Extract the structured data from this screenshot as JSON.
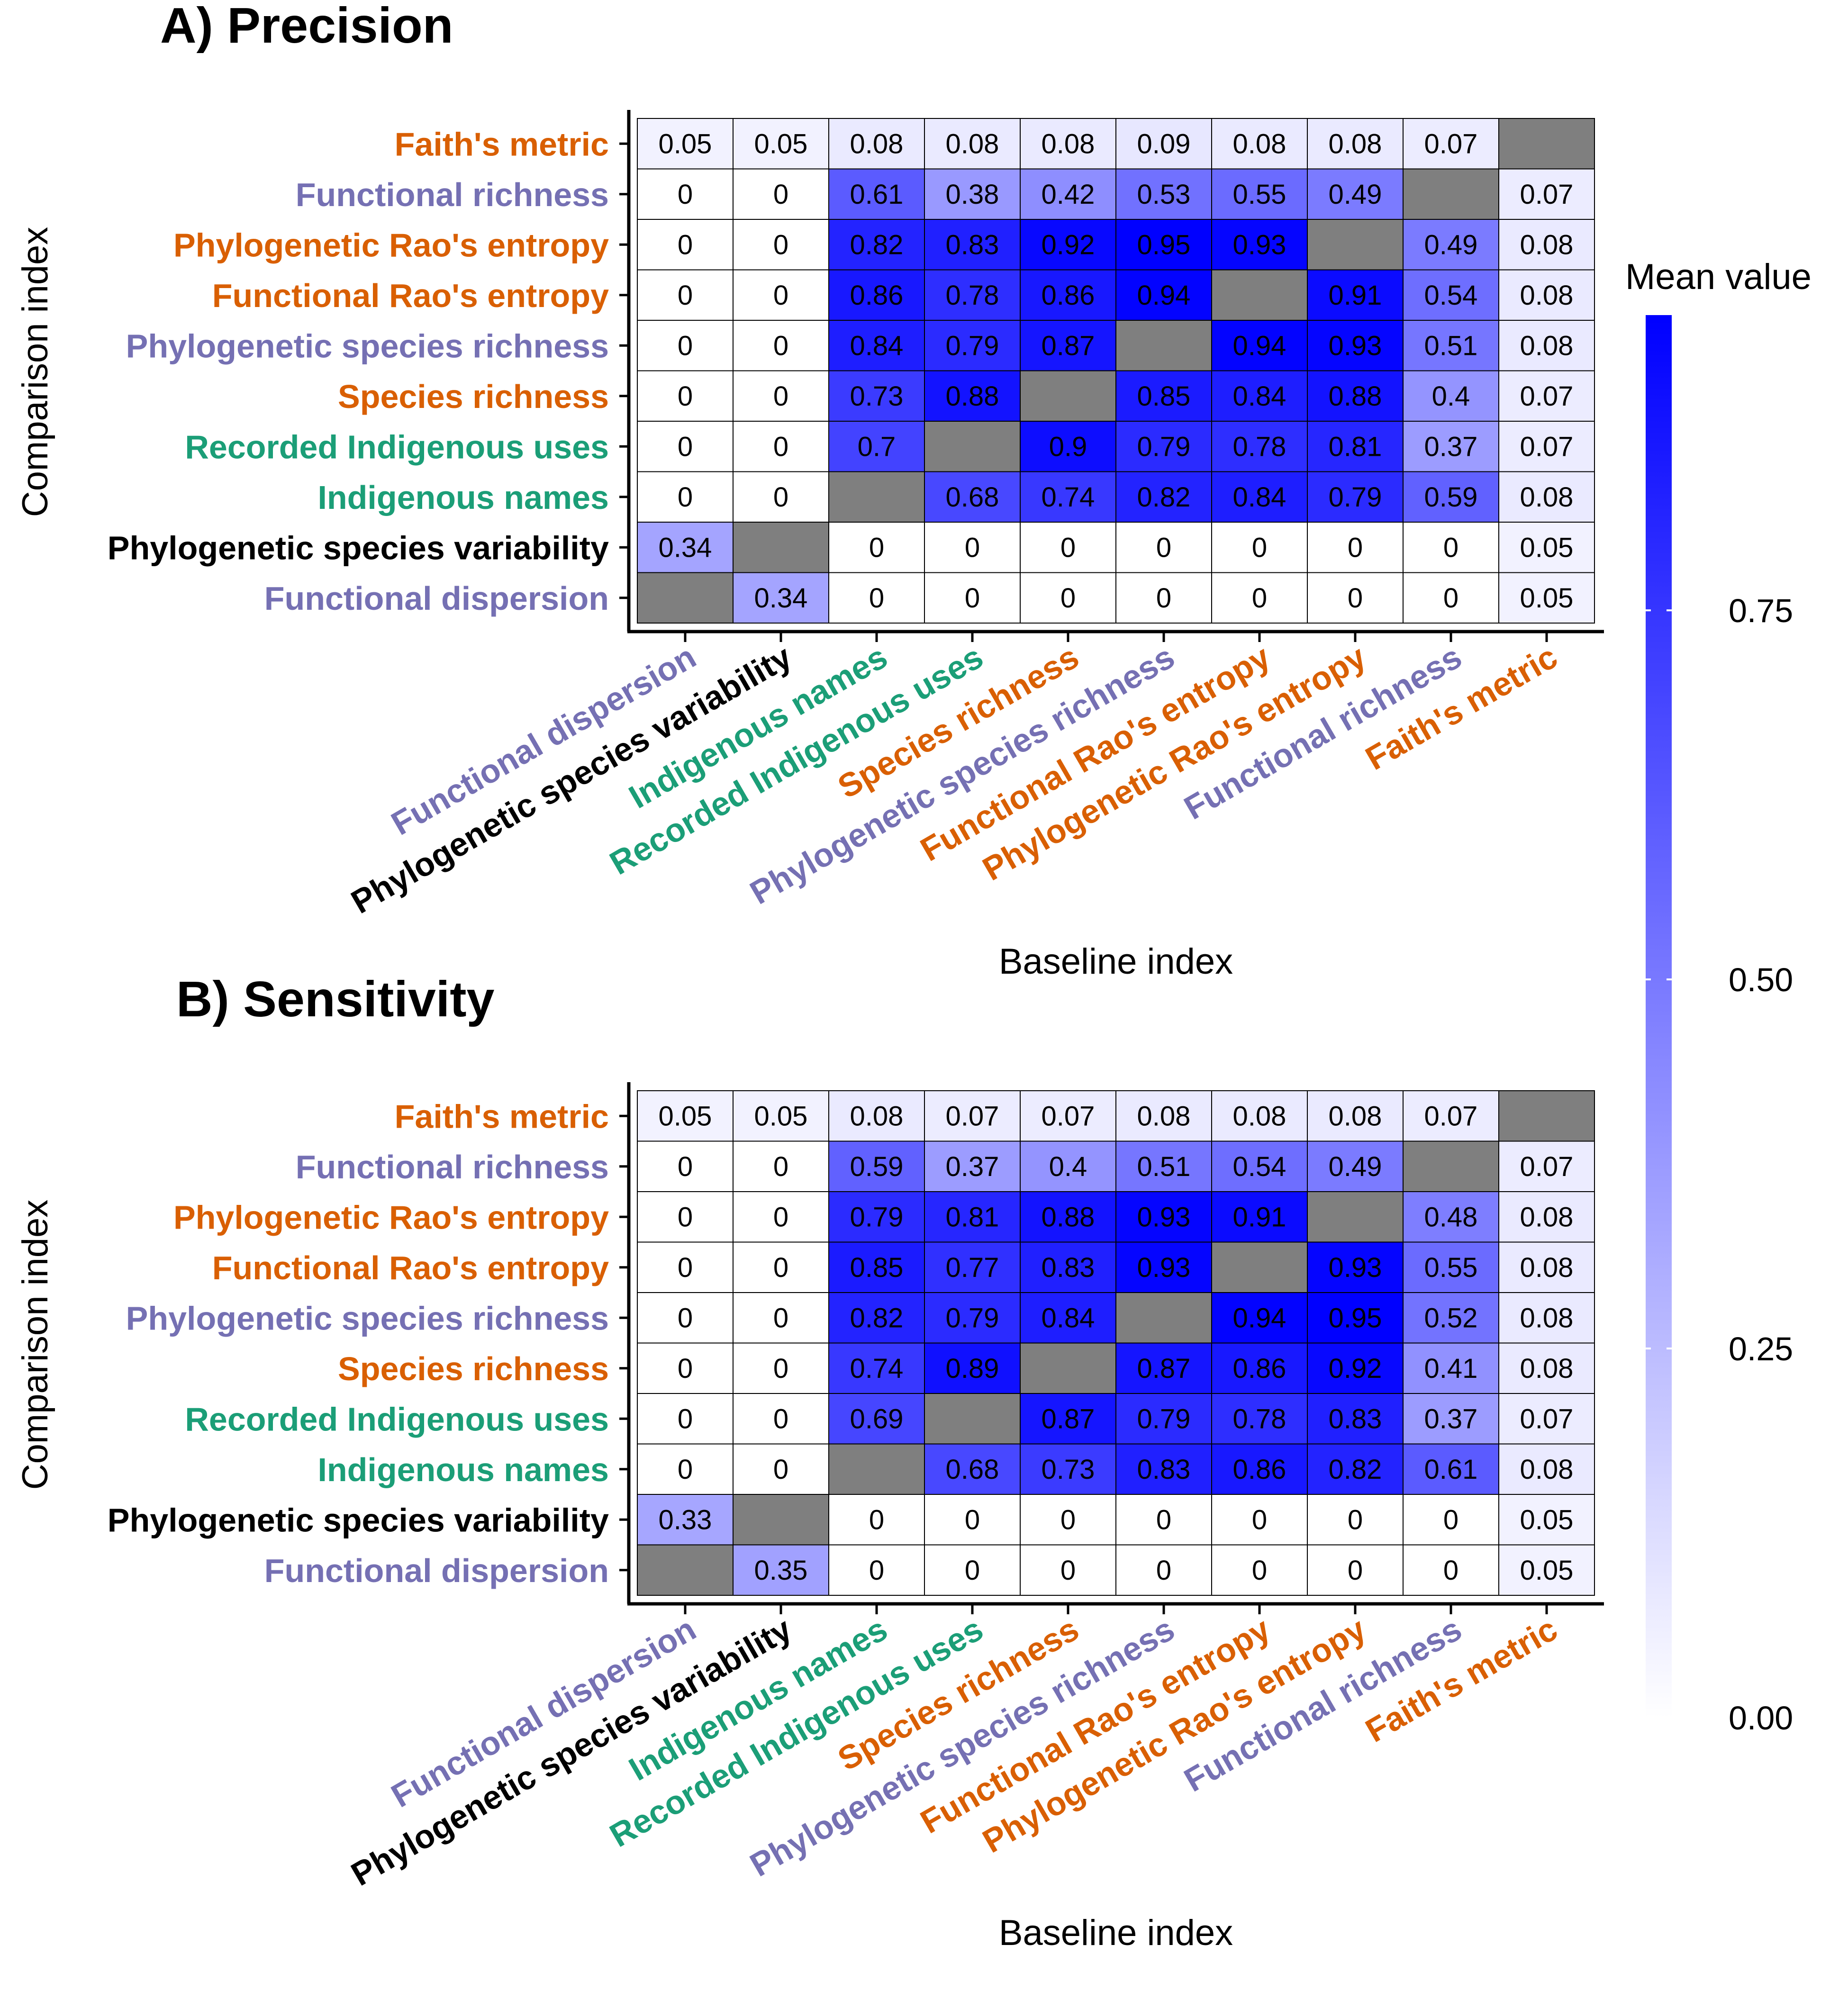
{
  "colors": {
    "group_orange": "#D95F02",
    "group_purple": "#7570B3",
    "group_green": "#1B9E77",
    "group_black": "#000000",
    "missing_cell": "#7F7F7F",
    "scale_low": "#FFFFFF",
    "scale_high": "#0000FF"
  },
  "label_groups": {
    "Faith's metric": "orange",
    "Functional richness": "purple",
    "Phylogenetic Rao's entropy": "orange",
    "Functional Rao's entropy": "orange",
    "Phylogenetic species richness": "purple",
    "Species richness": "orange",
    "Recorded Indigenous uses": "green",
    "Indigenous names": "green",
    "Phylogenetic species variability": "black",
    "Functional dispersion": "purple"
  },
  "legend": {
    "title": "Mean value",
    "ticks": [
      0.0,
      0.25,
      0.5,
      0.75
    ],
    "tick_labels": [
      "0.00",
      "0.25",
      "0.50",
      "0.75"
    ],
    "range": [
      0,
      0.95
    ]
  },
  "chart_data": [
    {
      "type": "heatmap",
      "title": "A) Precision",
      "xlabel": "Baseline index",
      "ylabel": "Comparison index",
      "x_categories": [
        "Functional dispersion",
        "Phylogenetic species variability",
        "Indigenous names",
        "Recorded Indigenous uses",
        "Species richness",
        "Phylogenetic species richness",
        "Functional Rao's entropy",
        "Phylogenetic Rao's entropy",
        "Functional richness",
        "Faith's metric"
      ],
      "y_categories": [
        "Faith's metric",
        "Functional richness",
        "Phylogenetic Rao's entropy",
        "Functional Rao's entropy",
        "Phylogenetic species richness",
        "Species richness",
        "Recorded Indigenous uses",
        "Indigenous names",
        "Phylogenetic species variability",
        "Functional dispersion"
      ],
      "values": [
        [
          0.05,
          0.05,
          0.08,
          0.08,
          0.08,
          0.09,
          0.08,
          0.08,
          0.07,
          null
        ],
        [
          0,
          0,
          0.61,
          0.38,
          0.42,
          0.53,
          0.55,
          0.49,
          null,
          0.07
        ],
        [
          0,
          0,
          0.82,
          0.83,
          0.92,
          0.95,
          0.93,
          null,
          0.49,
          0.08
        ],
        [
          0,
          0,
          0.86,
          0.78,
          0.86,
          0.94,
          null,
          0.91,
          0.54,
          0.08
        ],
        [
          0,
          0,
          0.84,
          0.79,
          0.87,
          null,
          0.94,
          0.93,
          0.51,
          0.08
        ],
        [
          0,
          0,
          0.73,
          0.88,
          null,
          0.85,
          0.84,
          0.88,
          0.4,
          0.07
        ],
        [
          0,
          0,
          0.7,
          null,
          0.9,
          0.79,
          0.78,
          0.81,
          0.37,
          0.07
        ],
        [
          0,
          0,
          null,
          0.68,
          0.74,
          0.82,
          0.84,
          0.79,
          0.59,
          0.08
        ],
        [
          0.34,
          null,
          0,
          0,
          0,
          0,
          0,
          0,
          0,
          0.05
        ],
        [
          null,
          0.34,
          0,
          0,
          0,
          0,
          0,
          0,
          0,
          0.05
        ]
      ]
    },
    {
      "type": "heatmap",
      "title": "B) Sensitivity",
      "xlabel": "Baseline index",
      "ylabel": "Comparison index",
      "x_categories": [
        "Functional dispersion",
        "Phylogenetic species variability",
        "Indigenous names",
        "Recorded Indigenous uses",
        "Species richness",
        "Phylogenetic species richness",
        "Functional Rao's entropy",
        "Phylogenetic Rao's entropy",
        "Functional richness",
        "Faith's metric"
      ],
      "y_categories": [
        "Faith's metric",
        "Functional richness",
        "Phylogenetic Rao's entropy",
        "Functional Rao's entropy",
        "Phylogenetic species richness",
        "Species richness",
        "Recorded Indigenous uses",
        "Indigenous names",
        "Phylogenetic species variability",
        "Functional dispersion"
      ],
      "values": [
        [
          0.05,
          0.05,
          0.08,
          0.07,
          0.07,
          0.08,
          0.08,
          0.08,
          0.07,
          null
        ],
        [
          0,
          0,
          0.59,
          0.37,
          0.4,
          0.51,
          0.54,
          0.49,
          null,
          0.07
        ],
        [
          0,
          0,
          0.79,
          0.81,
          0.88,
          0.93,
          0.91,
          null,
          0.48,
          0.08
        ],
        [
          0,
          0,
          0.85,
          0.77,
          0.83,
          0.93,
          null,
          0.93,
          0.55,
          0.08
        ],
        [
          0,
          0,
          0.82,
          0.79,
          0.84,
          null,
          0.94,
          0.95,
          0.52,
          0.08
        ],
        [
          0,
          0,
          0.74,
          0.89,
          null,
          0.87,
          0.86,
          0.92,
          0.41,
          0.08
        ],
        [
          0,
          0,
          0.69,
          null,
          0.87,
          0.79,
          0.78,
          0.83,
          0.37,
          0.07
        ],
        [
          0,
          0,
          null,
          0.68,
          0.73,
          0.83,
          0.86,
          0.82,
          0.61,
          0.08
        ],
        [
          0.33,
          null,
          0,
          0,
          0,
          0,
          0,
          0,
          0,
          0.05
        ],
        [
          null,
          0.35,
          0,
          0,
          0,
          0,
          0,
          0,
          0,
          0.05
        ]
      ]
    }
  ]
}
